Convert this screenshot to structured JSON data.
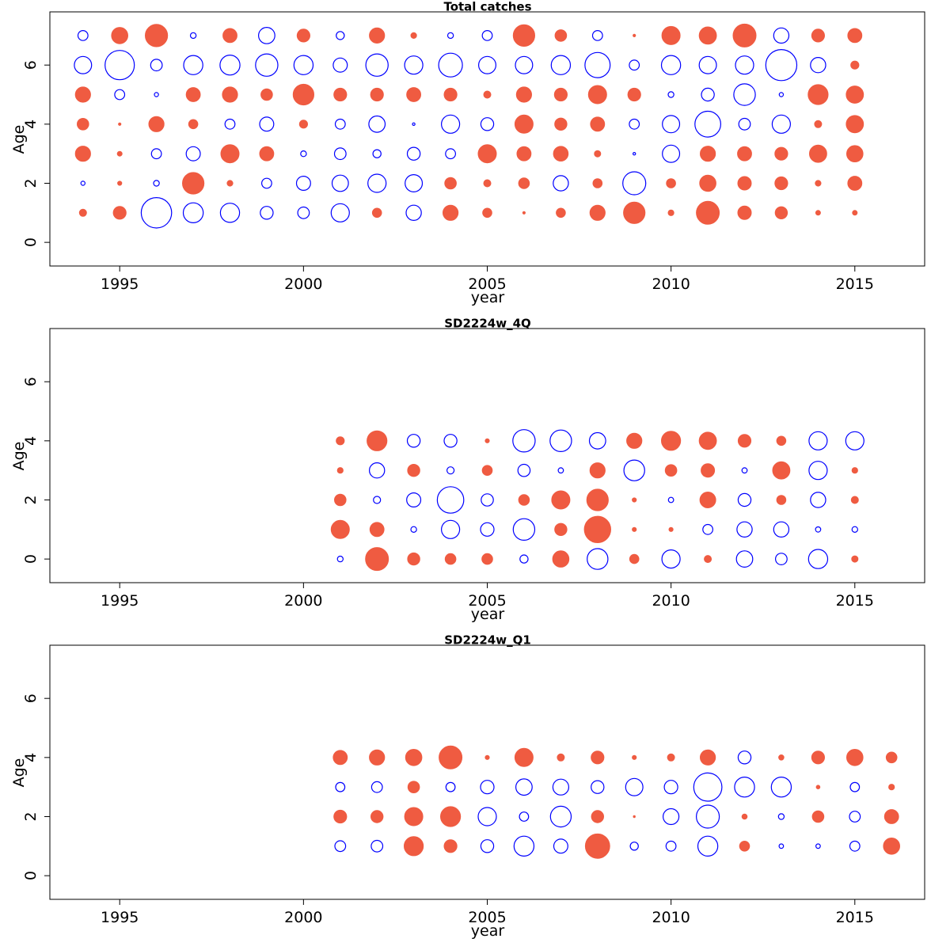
{
  "colors": {
    "positive": "#EF5B41",
    "negative": "#0000FF",
    "frame": "#000000"
  },
  "chart_data": [
    {
      "type": "scatter",
      "subtype": "bubble",
      "title": "Total catches",
      "xlabel": "year",
      "ylabel": "Age",
      "xlim": [
        1993.1,
        2016.9
      ],
      "ylim": [
        -0.8,
        7.8
      ],
      "xticks": [
        1995,
        2000,
        2005,
        2010,
        2015
      ],
      "yticks": [
        0,
        2,
        4,
        6
      ],
      "ages": [
        1,
        2,
        3,
        4,
        5,
        6,
        7
      ],
      "x": [
        1994,
        1995,
        1996,
        1997,
        1998,
        1999,
        2000,
        2001,
        2002,
        2003,
        2004,
        2005,
        2006,
        2007,
        2008,
        2009,
        2010,
        2011,
        2012,
        2013,
        2014,
        2015
      ],
      "note": "residual values by age; positive = filled red circle, negative = open blue circle; area proportional to |value|",
      "values": {
        "7": [
          -0.3,
          0.8,
          1.5,
          -0.1,
          0.6,
          -0.8,
          0.5,
          -0.2,
          0.7,
          0.1,
          -0.1,
          -0.3,
          1.4,
          0.4,
          -0.3,
          0.02,
          1.0,
          0.9,
          1.6,
          -0.7,
          0.5,
          0.6
        ],
        "6": [
          -0.9,
          -2.6,
          -0.4,
          -1.1,
          -1.2,
          -1.5,
          -1.1,
          -0.6,
          -1.5,
          -1.0,
          -1.7,
          -0.9,
          -0.9,
          -1.1,
          -1.9,
          -0.3,
          -1.1,
          -0.9,
          -1.0,
          -2.9,
          -0.7,
          0.2
        ],
        "5": [
          0.7,
          -0.3,
          -0.05,
          0.6,
          0.7,
          0.4,
          1.3,
          0.5,
          0.5,
          0.6,
          0.5,
          0.15,
          0.7,
          0.5,
          1.0,
          0.5,
          -0.1,
          -0.5,
          -1.4,
          -0.05,
          1.2,
          0.9
        ],
        "4": [
          0.4,
          0.02,
          0.7,
          0.25,
          -0.3,
          -0.6,
          0.2,
          -0.3,
          -0.8,
          -0.02,
          -1.0,
          -0.5,
          1.0,
          0.45,
          0.6,
          -0.3,
          -0.9,
          -2.0,
          -0.4,
          -1.0,
          0.15,
          0.9
        ],
        "3": [
          0.7,
          0.07,
          -0.3,
          -0.6,
          1.0,
          0.6,
          -0.1,
          -0.4,
          -0.2,
          -0.5,
          -0.3,
          1.0,
          0.6,
          0.65,
          0.12,
          -0.02,
          -0.9,
          0.7,
          0.6,
          0.5,
          0.9,
          0.8
        ],
        "2": [
          -0.05,
          0.05,
          -0.1,
          1.4,
          0.1,
          -0.3,
          -0.6,
          -0.8,
          -1.0,
          -0.9,
          0.4,
          0.15,
          0.35,
          -0.7,
          0.25,
          -1.6,
          0.25,
          0.8,
          0.55,
          0.5,
          0.1,
          0.6
        ],
        "1": [
          0.15,
          0.5,
          -2.8,
          -1.2,
          -1.1,
          -0.5,
          -0.4,
          -1.0,
          0.25,
          -0.7,
          0.7,
          0.25,
          0.02,
          0.25,
          0.7,
          1.4,
          0.1,
          1.6,
          0.55,
          0.45,
          0.07,
          0.07
        ]
      }
    },
    {
      "type": "scatter",
      "subtype": "bubble",
      "title": "SD2224w_4Q",
      "xlabel": "year",
      "ylabel": "Age",
      "xlim": [
        1993.1,
        2016.9
      ],
      "ylim": [
        -0.8,
        7.8
      ],
      "xticks": [
        1995,
        2000,
        2005,
        2010,
        2015
      ],
      "yticks": [
        0,
        2,
        4,
        6
      ],
      "ages": [
        0,
        1,
        2,
        3,
        4
      ],
      "x": [
        2001,
        2002,
        2003,
        2004,
        2005,
        2006,
        2007,
        2008,
        2009,
        2010,
        2011,
        2012,
        2013,
        2014,
        2015
      ],
      "values": {
        "4": [
          0.2,
          1.2,
          -0.5,
          -0.5,
          0.05,
          -1.5,
          -1.4,
          -0.8,
          0.7,
          1.1,
          0.9,
          0.5,
          0.25,
          -1.0,
          -1.0
        ],
        "3": [
          0.1,
          -0.7,
          0.45,
          -0.15,
          0.3,
          -0.45,
          -0.08,
          0.7,
          -1.3,
          0.4,
          0.55,
          -0.08,
          0.9,
          -1.0,
          0.1
        ],
        "2": [
          0.4,
          -0.15,
          -0.6,
          -2.1,
          -0.45,
          0.35,
          1.0,
          1.4,
          0.05,
          -0.08,
          0.75,
          -0.5,
          0.25,
          -0.7,
          0.15
        ],
        "1": [
          1.0,
          0.6,
          -0.1,
          -1.0,
          -0.55,
          -1.4,
          0.45,
          2.1,
          0.05,
          0.05,
          -0.3,
          -0.7,
          -0.7,
          -0.08,
          -0.1
        ],
        "0": [
          -0.1,
          1.6,
          0.45,
          0.35,
          0.35,
          -0.2,
          0.8,
          -1.3,
          0.25,
          -1.0,
          0.15,
          -0.8,
          -0.4,
          -1.1,
          0.12
        ]
      }
    },
    {
      "type": "scatter",
      "subtype": "bubble",
      "title": "SD2224w_Q1",
      "xlabel": "year",
      "ylabel": "Age",
      "xlim": [
        1993.1,
        2016.9
      ],
      "ylim": [
        -0.8,
        7.8
      ],
      "xticks": [
        1995,
        2000,
        2005,
        2010,
        2015
      ],
      "yticks": [
        0,
        2,
        4,
        6
      ],
      "ages": [
        1,
        2,
        3,
        4
      ],
      "x": [
        2001,
        2002,
        2003,
        2004,
        2005,
        2006,
        2007,
        2008,
        2009,
        2010,
        2011,
        2012,
        2013,
        2014,
        2015,
        2016
      ],
      "values": {
        "4": [
          0.6,
          0.7,
          0.8,
          1.6,
          0.05,
          1.0,
          0.15,
          0.5,
          0.05,
          0.15,
          0.7,
          -0.5,
          0.08,
          0.5,
          0.8,
          0.35
        ],
        "3": [
          -0.25,
          -0.35,
          0.4,
          -0.25,
          -0.55,
          -0.8,
          -0.75,
          -0.5,
          -0.9,
          -0.55,
          -2.4,
          -1.2,
          -1.2,
          0.04,
          -0.25,
          0.1
        ],
        "2": [
          0.5,
          0.45,
          1.0,
          1.2,
          -1.0,
          -0.25,
          -1.3,
          0.45,
          0.01,
          -0.75,
          -1.6,
          0.08,
          -0.1,
          0.4,
          -0.35,
          0.6
        ],
        "1": [
          -0.35,
          -0.4,
          1.1,
          0.5,
          -0.5,
          -1.2,
          -0.6,
          1.8,
          -0.2,
          -0.3,
          -1.2,
          0.3,
          -0.06,
          -0.06,
          -0.3,
          0.8
        ]
      }
    }
  ]
}
